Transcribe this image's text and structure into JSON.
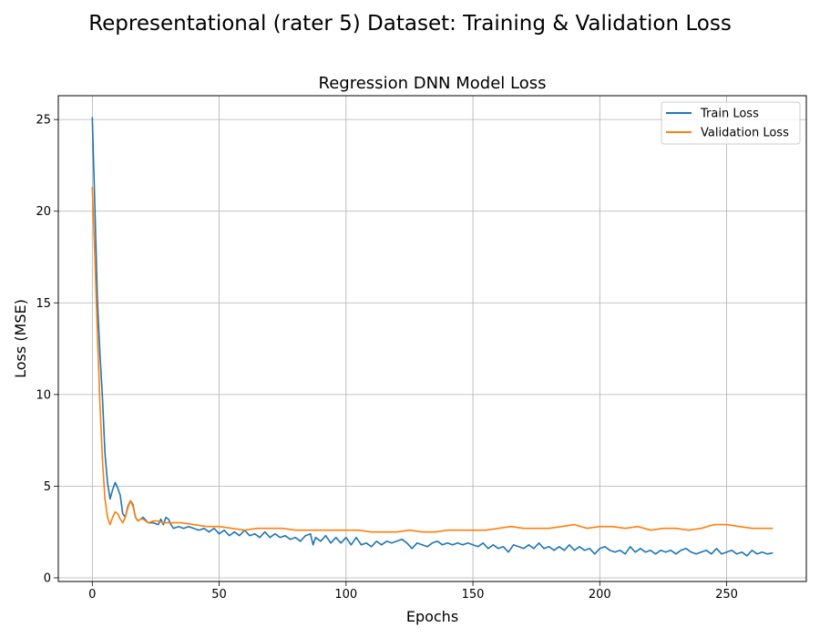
{
  "figure": {
    "suptitle": "Representational (rater 5) Dataset: Training & Validation Loss"
  },
  "chart_data": {
    "type": "line",
    "title": "Regression DNN Model Loss",
    "xlabel": "Epochs",
    "ylabel": "Loss (MSE)",
    "xlim": [
      -13.4,
      281.4
    ],
    "ylim": [
      -0.2,
      26.3
    ],
    "xticks": [
      0,
      50,
      100,
      150,
      200,
      250
    ],
    "yticks": [
      0,
      5,
      10,
      15,
      20,
      25
    ],
    "grid": true,
    "legend_position": "top-right",
    "series": [
      {
        "name": "Train Loss",
        "color": "#1f77b4",
        "x": [
          0,
          1,
          2,
          3,
          4,
          5,
          6,
          7,
          8,
          9,
          10,
          11,
          12,
          13,
          14,
          15,
          16,
          17,
          18,
          19,
          20,
          22,
          24,
          26,
          27,
          28,
          29,
          30,
          31,
          32,
          34,
          36,
          38,
          40,
          42,
          44,
          46,
          48,
          50,
          52,
          54,
          56,
          58,
          60,
          62,
          64,
          66,
          68,
          70,
          72,
          74,
          76,
          78,
          80,
          82,
          84,
          86,
          87,
          88,
          90,
          92,
          94,
          96,
          98,
          100,
          102,
          104,
          106,
          108,
          110,
          112,
          114,
          116,
          118,
          120,
          122,
          124,
          126,
          128,
          130,
          132,
          134,
          136,
          138,
          140,
          142,
          144,
          146,
          148,
          150,
          152,
          154,
          156,
          158,
          160,
          162,
          164,
          166,
          168,
          170,
          172,
          174,
          176,
          178,
          180,
          182,
          184,
          186,
          188,
          190,
          192,
          194,
          196,
          198,
          200,
          202,
          204,
          206,
          208,
          210,
          212,
          214,
          216,
          218,
          220,
          222,
          224,
          226,
          228,
          230,
          232,
          234,
          236,
          238,
          240,
          242,
          244,
          246,
          248,
          250,
          252,
          254,
          256,
          258,
          260,
          262,
          264,
          266,
          268
        ],
        "values": [
          25.1,
          20.3,
          15.2,
          12.2,
          9.8,
          6.8,
          5.2,
          4.3,
          4.8,
          5.2,
          4.9,
          4.5,
          3.5,
          3.3,
          3.9,
          4.2,
          4.0,
          3.3,
          3.1,
          3.2,
          3.3,
          3.0,
          3.0,
          2.9,
          3.2,
          2.9,
          3.3,
          3.2,
          2.9,
          2.7,
          2.8,
          2.7,
          2.8,
          2.7,
          2.6,
          2.7,
          2.5,
          2.7,
          2.4,
          2.6,
          2.3,
          2.5,
          2.3,
          2.6,
          2.3,
          2.4,
          2.2,
          2.5,
          2.2,
          2.4,
          2.2,
          2.3,
          2.1,
          2.2,
          2.0,
          2.3,
          2.4,
          1.8,
          2.2,
          2.0,
          2.3,
          1.9,
          2.2,
          1.9,
          2.2,
          1.8,
          2.2,
          1.8,
          1.9,
          1.7,
          2.0,
          1.8,
          2.0,
          1.9,
          2.0,
          2.1,
          1.9,
          1.6,
          1.9,
          1.8,
          1.7,
          1.9,
          2.0,
          1.8,
          1.9,
          1.8,
          1.9,
          1.8,
          1.9,
          1.8,
          1.7,
          1.9,
          1.6,
          1.8,
          1.6,
          1.7,
          1.4,
          1.8,
          1.7,
          1.6,
          1.8,
          1.6,
          1.9,
          1.6,
          1.7,
          1.5,
          1.7,
          1.5,
          1.8,
          1.5,
          1.7,
          1.5,
          1.6,
          1.3,
          1.6,
          1.7,
          1.5,
          1.4,
          1.5,
          1.3,
          1.7,
          1.4,
          1.6,
          1.4,
          1.5,
          1.3,
          1.5,
          1.4,
          1.5,
          1.3,
          1.5,
          1.6,
          1.4,
          1.3,
          1.4,
          1.5,
          1.3,
          1.6,
          1.3,
          1.4,
          1.5,
          1.3,
          1.4,
          1.2,
          1.5,
          1.3,
          1.4,
          1.3,
          1.35
        ]
      },
      {
        "name": "Validation Loss",
        "color": "#ff7f0e",
        "x": [
          0,
          1,
          2,
          3,
          4,
          5,
          6,
          7,
          8,
          9,
          10,
          11,
          12,
          13,
          14,
          15,
          16,
          17,
          18,
          19,
          20,
          22,
          24,
          26,
          28,
          30,
          35,
          40,
          45,
          50,
          55,
          60,
          65,
          70,
          75,
          80,
          85,
          90,
          95,
          100,
          105,
          110,
          115,
          120,
          125,
          130,
          135,
          140,
          145,
          150,
          155,
          160,
          165,
          170,
          175,
          180,
          185,
          190,
          195,
          200,
          205,
          210,
          215,
          220,
          225,
          230,
          235,
          240,
          245,
          250,
          255,
          260,
          265,
          268
        ],
        "values": [
          21.3,
          17.5,
          13.3,
          9.5,
          6.4,
          4.3,
          3.3,
          2.9,
          3.3,
          3.6,
          3.5,
          3.2,
          3.0,
          3.3,
          3.8,
          4.2,
          3.9,
          3.3,
          3.1,
          3.2,
          3.2,
          3.0,
          3.1,
          3.1,
          3.0,
          3.0,
          3.0,
          2.9,
          2.8,
          2.8,
          2.7,
          2.6,
          2.7,
          2.7,
          2.7,
          2.6,
          2.6,
          2.6,
          2.6,
          2.6,
          2.6,
          2.5,
          2.5,
          2.5,
          2.6,
          2.5,
          2.5,
          2.6,
          2.6,
          2.6,
          2.6,
          2.7,
          2.8,
          2.7,
          2.7,
          2.7,
          2.8,
          2.9,
          2.7,
          2.8,
          2.8,
          2.7,
          2.8,
          2.6,
          2.7,
          2.7,
          2.6,
          2.7,
          2.9,
          2.9,
          2.8,
          2.7,
          2.7,
          2.7
        ]
      }
    ]
  }
}
